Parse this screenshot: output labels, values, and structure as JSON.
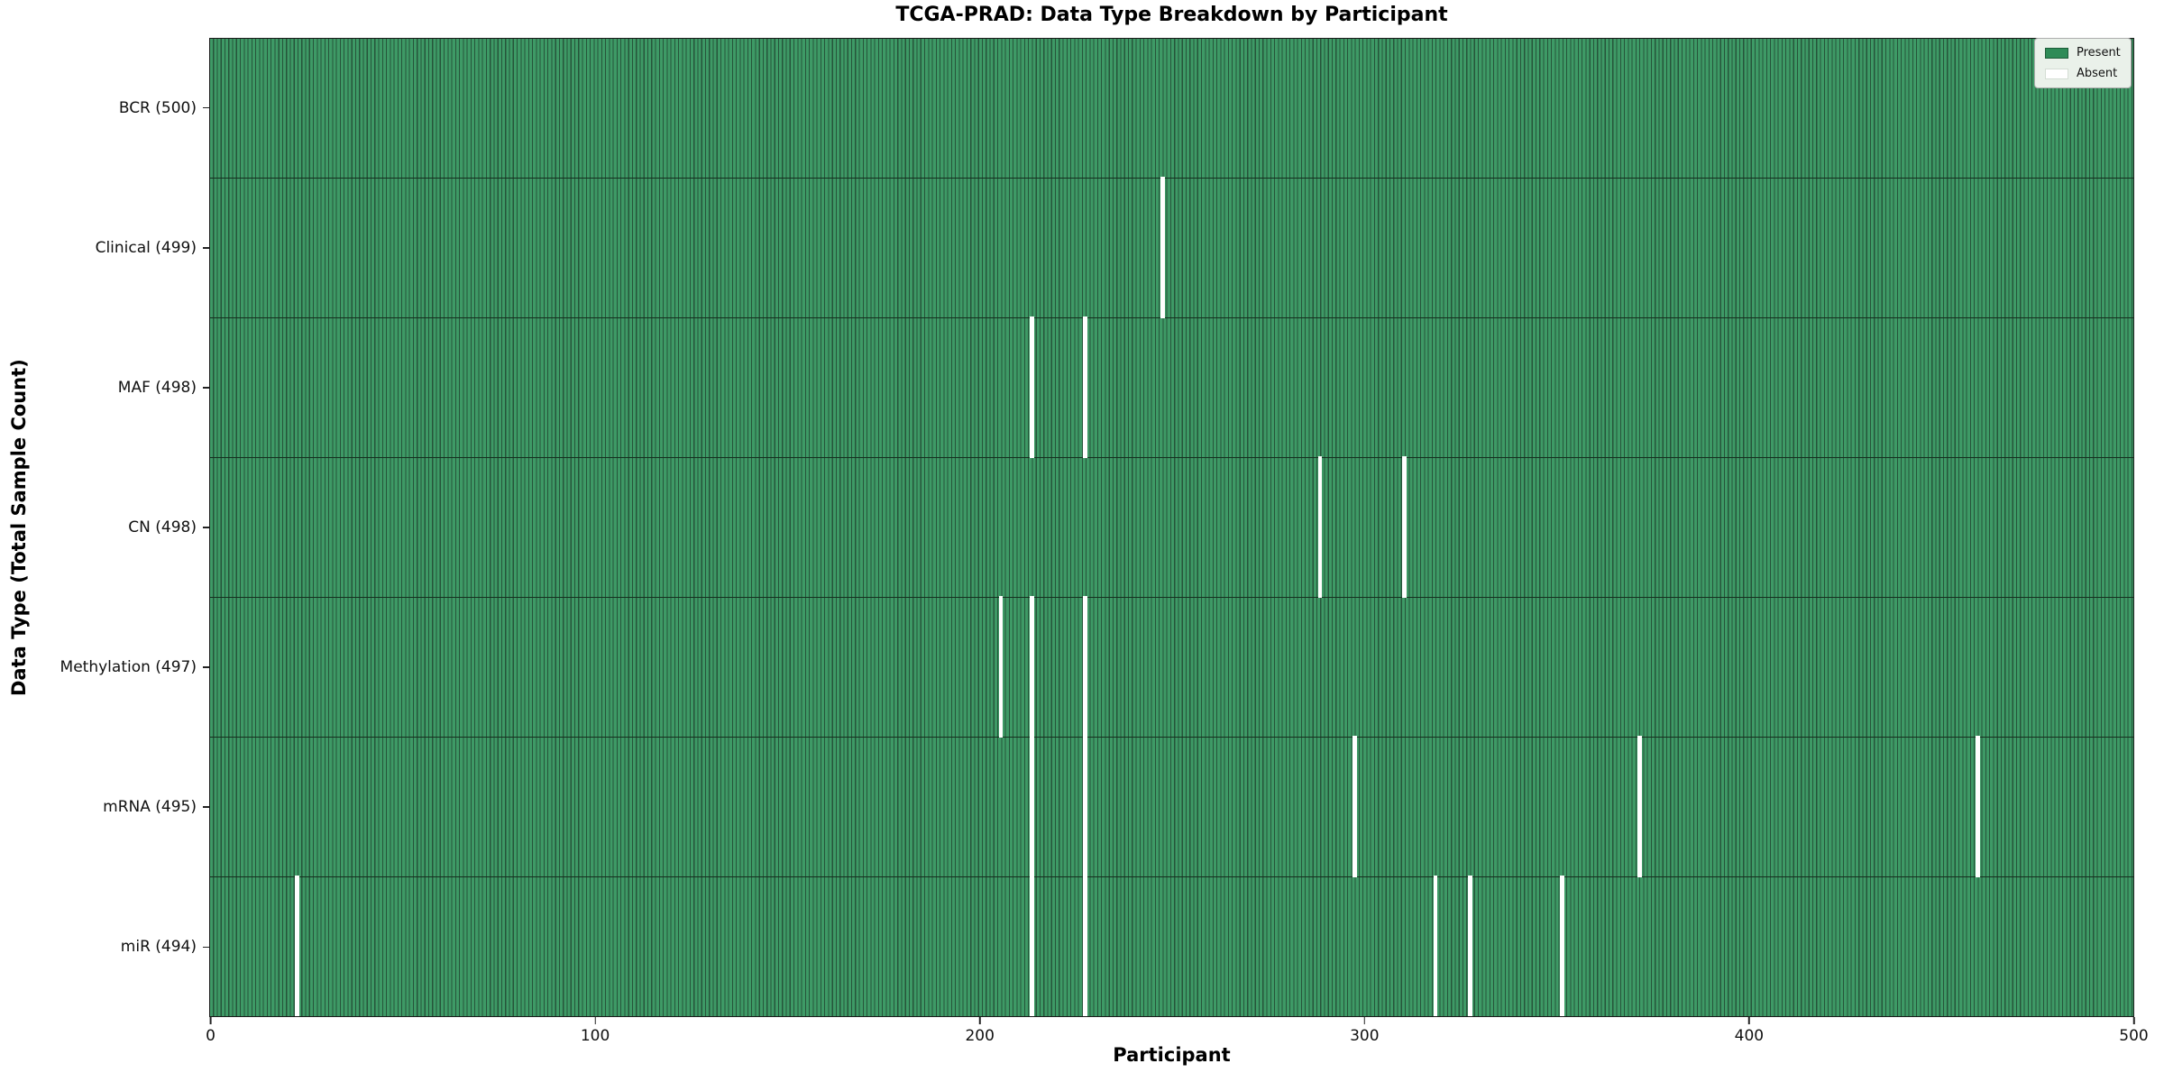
{
  "colors": {
    "present_fill": "#3e9a66",
    "cell_edge": "#26543a",
    "row_separator": "#15301f",
    "spine": "#1a1a1a",
    "absent": "#ffffff",
    "legend_present": "#2e8b57",
    "legend_bg": "#eaf1ea",
    "legend_border": "#adadad"
  },
  "chart_data": {
    "type": "heatmap",
    "title": "TCGA-PRAD: Data Type Breakdown by Participant",
    "xlabel": "Participant",
    "ylabel": "Data Type (Total Sample Count)",
    "x_range": [
      0,
      500
    ],
    "x_ticks": [
      0,
      100,
      200,
      300,
      400,
      500
    ],
    "participants_total": 500,
    "grid": false,
    "legend_position": "upper right",
    "legend_items": [
      {
        "label": "Present",
        "color": "#2e8b57"
      },
      {
        "label": "Absent",
        "color": "#ffffff"
      }
    ],
    "rows": [
      {
        "label": "BCR (500)",
        "data_type": "BCR",
        "present_count": 500,
        "absent_participants": []
      },
      {
        "label": "Clinical (499)",
        "data_type": "Clinical",
        "present_count": 499,
        "absent_participants": [
          247
        ]
      },
      {
        "label": "MAF (498)",
        "data_type": "MAF",
        "present_count": 498,
        "absent_participants": [
          213,
          227
        ]
      },
      {
        "label": "CN (498)",
        "data_type": "CN",
        "present_count": 498,
        "absent_participants": [
          288,
          310
        ]
      },
      {
        "label": "Methylation (497)",
        "data_type": "Methylation",
        "present_count": 497,
        "absent_participants": [
          205,
          213,
          227
        ]
      },
      {
        "label": "mRNA (495)",
        "data_type": "mRNA",
        "present_count": 495,
        "absent_participants": [
          213,
          227,
          297,
          371,
          459
        ]
      },
      {
        "label": "miR (494)",
        "data_type": "miR",
        "present_count": 494,
        "absent_participants": [
          22,
          213,
          227,
          318,
          327,
          351
        ]
      }
    ]
  }
}
